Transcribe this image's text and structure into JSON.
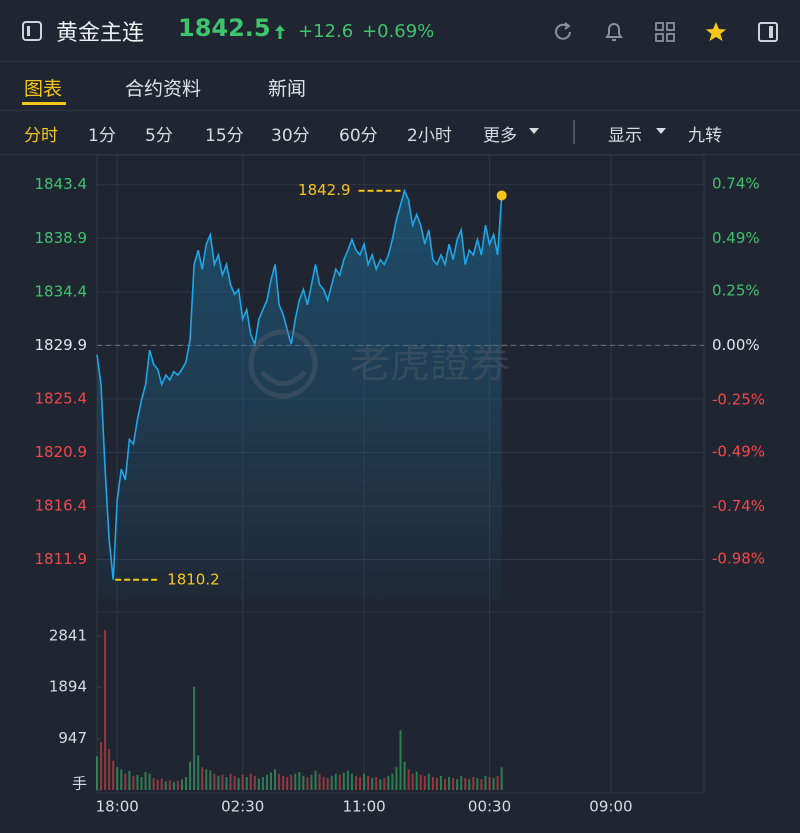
{
  "header": {
    "title": "黄金主连",
    "price": "1842.5",
    "change": "+12.6",
    "change_pct": "+0.69%"
  },
  "tabs": [
    "图表",
    "合约资料",
    "新闻"
  ],
  "periods": [
    "分时",
    "1分",
    "5分",
    "15分",
    "30分",
    "60分",
    "2小时",
    "更多"
  ],
  "options": [
    "显示",
    "九转"
  ],
  "watermark": "老虎證券",
  "chart_data": [
    {
      "type": "line",
      "color": "#1ea7e8",
      "up_color": "#3ec46d",
      "down_color": "#f2484b",
      "xlim": [
        0,
        150
      ],
      "xticks": [
        {
          "value": 5,
          "label": "18:00"
        },
        {
          "value": 36,
          "label": "02:30"
        },
        {
          "value": 66,
          "label": "11:00"
        },
        {
          "value": 97,
          "label": "00:30"
        },
        {
          "value": 127,
          "label": "09:00"
        }
      ],
      "ylim": [
        1808.5,
        1845.9
      ],
      "yticks": [
        1843.4,
        1838.9,
        1834.4,
        1829.9,
        1825.4,
        1820.9,
        1816.4,
        1811.9
      ],
      "y2lim": [
        -1.169,
        0.874
      ],
      "y2ticks": [
        {
          "value": 0.74,
          "label": "0.74%"
        },
        {
          "value": 0.49,
          "label": "0.49%"
        },
        {
          "value": 0.25,
          "label": "0.25%"
        },
        {
          "value": 0,
          "label": "0.00%"
        },
        {
          "value": -0.25,
          "label": "-0.25%"
        },
        {
          "value": -0.49,
          "label": "-0.49%"
        },
        {
          "value": -0.74,
          "label": "-0.74%"
        },
        {
          "value": -0.98,
          "label": "-0.98%"
        }
      ],
      "prev_close": 1829.9,
      "annotations": [
        {
          "label": "1842.9",
          "x": 76,
          "value": 1842.9
        },
        {
          "label": "1810.2",
          "x": 4,
          "value": 1810.2
        }
      ],
      "values": [
        1829.1,
        1826.6,
        1819.5,
        1813.6,
        1810.2,
        1816.9,
        1819.5,
        1818.6,
        1822.0,
        1821.6,
        1823.7,
        1825.3,
        1826.6,
        1829.5,
        1828.3,
        1827.9,
        1826.6,
        1827.4,
        1827.0,
        1827.7,
        1827.4,
        1827.9,
        1828.5,
        1830.4,
        1836.7,
        1837.9,
        1836.3,
        1838.4,
        1839.2,
        1836.7,
        1837.5,
        1835.8,
        1836.7,
        1835.0,
        1834.2,
        1834.6,
        1832.1,
        1832.9,
        1830.8,
        1830.0,
        1832.1,
        1832.9,
        1833.7,
        1835.4,
        1836.7,
        1833.3,
        1832.5,
        1831.2,
        1830.0,
        1832.1,
        1833.7,
        1834.6,
        1833.3,
        1835.0,
        1836.7,
        1835.0,
        1834.6,
        1833.7,
        1835.0,
        1836.3,
        1835.8,
        1837.1,
        1837.9,
        1838.8,
        1837.9,
        1837.5,
        1838.4,
        1836.7,
        1837.5,
        1836.3,
        1837.1,
        1836.7,
        1837.5,
        1838.8,
        1840.5,
        1841.7,
        1842.9,
        1842.1,
        1840.0,
        1840.9,
        1840.0,
        1838.4,
        1839.6,
        1837.1,
        1836.7,
        1837.5,
        1836.7,
        1838.4,
        1837.1,
        1838.8,
        1839.6,
        1836.7,
        1837.9,
        1837.5,
        1838.8,
        1837.5,
        1840.0,
        1838.4,
        1839.2,
        1837.5,
        1842.5
      ]
    },
    {
      "type": "bar",
      "up_color": "#3ec46d",
      "down_color": "#f2484b",
      "xlim": [
        0,
        150
      ],
      "ylim": [
        0,
        3040
      ],
      "yticks": [
        2841,
        1894,
        947,
        {
          "value": 0,
          "label": "手"
        }
      ],
      "values": [
        620,
        880,
        2950,
        760,
        540,
        420,
        380,
        300,
        350,
        260,
        280,
        240,
        330,
        300,
        220,
        190,
        210,
        160,
        180,
        150,
        170,
        200,
        240,
        520,
        1900,
        640,
        420,
        380,
        360,
        300,
        260,
        280,
        240,
        300,
        260,
        220,
        280,
        240,
        300,
        260,
        210,
        240,
        280,
        320,
        380,
        300,
        260,
        240,
        280,
        300,
        330,
        260,
        240,
        280,
        360,
        300,
        240,
        220,
        260,
        300,
        280,
        320,
        360,
        300,
        260,
        240,
        300,
        260,
        220,
        240,
        200,
        220,
        260,
        300,
        420,
        1100,
        520,
        380,
        300,
        340,
        280,
        260,
        300,
        240,
        220,
        260,
        200,
        240,
        220,
        200,
        260,
        220,
        200,
        240,
        220,
        200,
        260,
        240,
        220,
        260,
        420
      ]
    }
  ]
}
